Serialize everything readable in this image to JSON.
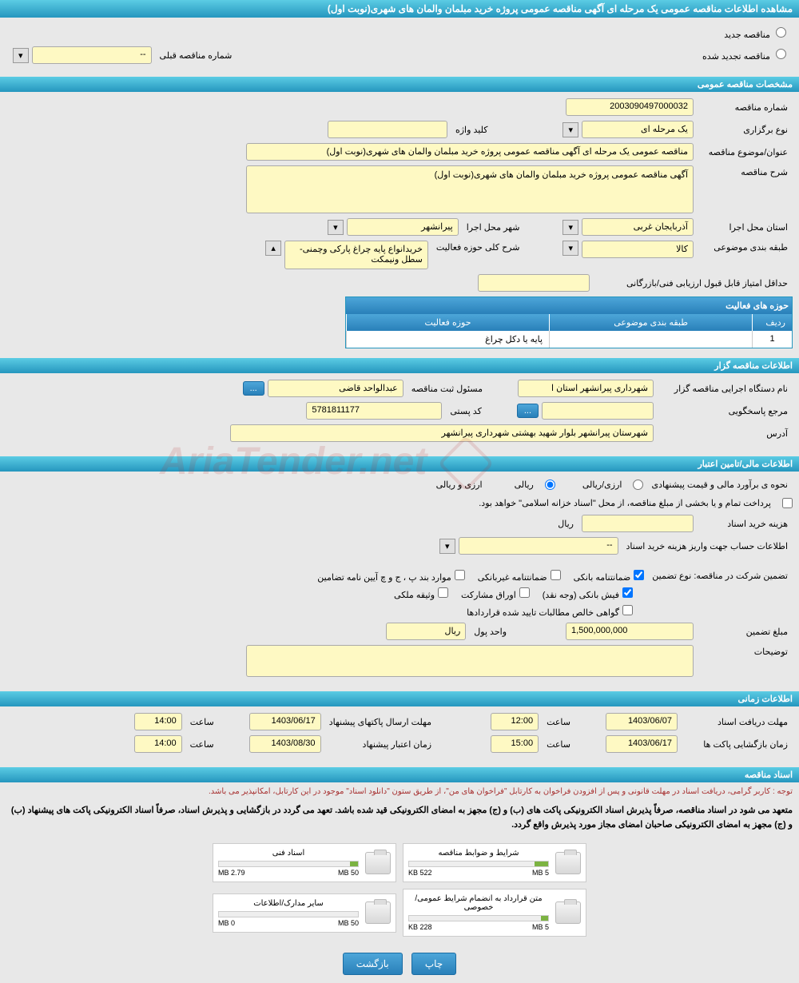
{
  "page_title": "مشاهده اطلاعات مناقصه عمومی یک مرحله ای آگهی مناقصه عمومی پروژه خرید مبلمان والمان های شهری(نوبت اول)",
  "tender_status": {
    "new_label": "مناقصه جدید",
    "renewed_label": "مناقصه تجدید شده"
  },
  "prev_tender": {
    "label": "شماره مناقصه قبلی",
    "value": "--"
  },
  "sections": {
    "general": "مشخصات مناقصه عمومی",
    "organizer": "اطلاعات مناقصه گزار",
    "financial": "اطلاعات مالی/تامین اعتبار",
    "timing": "اطلاعات زمانی",
    "documents": "اسناد مناقصه"
  },
  "general": {
    "tender_number_label": "شماره مناقصه",
    "tender_number": "2003090497000032",
    "holding_type_label": "نوع برگزاری",
    "holding_type": "یک مرحله ای",
    "keyword_label": "کلید واژه",
    "keyword": "",
    "subject_label": "عنوان/موضوع مناقصه",
    "subject": "مناقصه عمومی یک مرحله ای آگهی مناقصه عمومی پروژه خرید مبلمان والمان های شهری(نوبت اول)",
    "description_label": "شرح مناقصه",
    "description": "آگهی مناقصه عمومی پروژه خرید مبلمان والمان های شهری(نوبت اول)",
    "province_label": "استان محل اجرا",
    "province": "آذربایجان غربی",
    "city_label": "شهر محل اجرا",
    "city": "پیرانشهر",
    "category_label": "طبقه بندی موضوعی",
    "category": "کالا",
    "activity_scope_label": "شرح کلی حوزه فعالیت",
    "activity_scope": "خریدانواع پایه چراغ پارکی وچمنی-سطل ونیمکت",
    "min_score_label": "حداقل امتیاز قابل قبول ارزیابی فنی/بازرگانی",
    "min_score": ""
  },
  "activity_table": {
    "title": "حوزه های فعالیت",
    "col_row": "ردیف",
    "col_category": "طبقه بندی موضوعی",
    "col_activity": "حوزه فعالیت",
    "rows": [
      {
        "num": "1",
        "category": "",
        "activity": "پایه یا دکل چراغ"
      }
    ]
  },
  "organizer": {
    "org_name_label": "نام دستگاه اجرایی مناقصه گزار",
    "org_name": "شهرداری پیرانشهر استان ا",
    "registrar_label": "مسئول ثبت مناقصه",
    "registrar": "عبدالواحد قاضی",
    "more_btn": "...",
    "response_ref_label": "مرجع پاسخگویی",
    "response_ref": "",
    "postal_code_label": "کد پستی",
    "postal_code": "5781811177",
    "address_label": "آدرس",
    "address": "شهرستان پیرانشهر بلوار شهید بهشتی شهرداری پیرانشهر"
  },
  "financial": {
    "estimate_label": "نحوه ی برآورد مالی و قیمت پیشنهادی",
    "currency_type": "ارزی/ریالی",
    "rial_label": "ریالی",
    "rial_currency_label": "ارزی و ریالی",
    "treasury_note": "پرداخت تمام و یا بخشی از مبلغ مناقصه، از محل \"اسناد خزانه اسلامی\" خواهد بود.",
    "doc_cost_label": "هزینه خرید اسناد",
    "doc_cost": "",
    "rial_suffix": "ریال",
    "account_info_label": "اطلاعات حساب جهت واریز هزینه خرید اسناد",
    "account_info": "--",
    "guarantee_label": "تضمین شرکت در مناقصه:   نوع تضمین",
    "guarantee_types": {
      "bank": "ضمانتنامه بانکی",
      "nonbank": "ضمانتنامه غیربانکی",
      "items": "موارد بند پ ، ج و چ آیین نامه تضامین",
      "cash": "فیش بانکی (وجه نقد)",
      "securities": "اوراق مشارکت",
      "property": "وثیقه ملکی",
      "cert": "گواهی خالص مطالبات تایید شده قراردادها"
    },
    "guarantee_amount_label": "مبلغ تضمین",
    "guarantee_amount": "1,500,000,000",
    "currency_unit_label": "واحد پول",
    "currency_unit": "ریال",
    "notes_label": "توضیحات",
    "notes": ""
  },
  "timing": {
    "doc_deadline_label": "مهلت دریافت اسناد",
    "doc_deadline_date": "1403/06/07",
    "doc_deadline_time": "12:00",
    "time_label": "ساعت",
    "envelope_deadline_label": "مهلت ارسال پاکتهای پیشنهاد",
    "envelope_deadline_date": "1403/06/17",
    "envelope_deadline_time": "14:00",
    "opening_label": "زمان بازگشایی پاکت ها",
    "opening_date": "1403/06/17",
    "opening_time": "15:00",
    "validity_label": "زمان اعتبار پیشنهاد",
    "validity_date": "1403/08/30",
    "validity_time": "14:00"
  },
  "documents": {
    "notice": "توجه : کاربر گرامی، دریافت اسناد در مهلت قانونی و پس از افزودن فراخوان به کارتابل \"فراخوان های من\"، از طریق ستون \"دانلود اسناد\" موجود در این کارتابل، امکانپذیر می باشد.",
    "commitment": "متعهد می شود در اسناد مناقصه، صرفاً پذیرش اسناد الکترونیکی پاکت های (ب) و (ج) مجهز به امضای الکترونیکی قید شده باشد. تعهد می گردد در بازگشایی و پذیرش اسناد، صرفاً اسناد الکترونیکی پاکت های پیشنهاد (ب) و (ج) مجهز به امضای الکترونیکی صاحبان امضای مجاز مورد پذیرش واقع گردد.",
    "files": [
      {
        "title": "شرایط و ضوابط مناقصه",
        "used": "522 KB",
        "total": "5 MB",
        "pct": 10
      },
      {
        "title": "اسناد فنی",
        "used": "2.79 MB",
        "total": "50 MB",
        "pct": 6
      },
      {
        "title": "متن قرارداد به انضمام شرایط عمومی/خصوصی",
        "used": "228 KB",
        "total": "5 MB",
        "pct": 5
      },
      {
        "title": "سایر مدارک/اطلاعات",
        "used": "0 MB",
        "total": "50 MB",
        "pct": 0
      }
    ]
  },
  "actions": {
    "print": "چاپ",
    "back": "بازگشت"
  },
  "watermark": "AriaTender.net",
  "colors": {
    "header_bg": "#2596be",
    "yellow_bg": "#fef9c3",
    "body_bg": "#e8e8e8"
  }
}
